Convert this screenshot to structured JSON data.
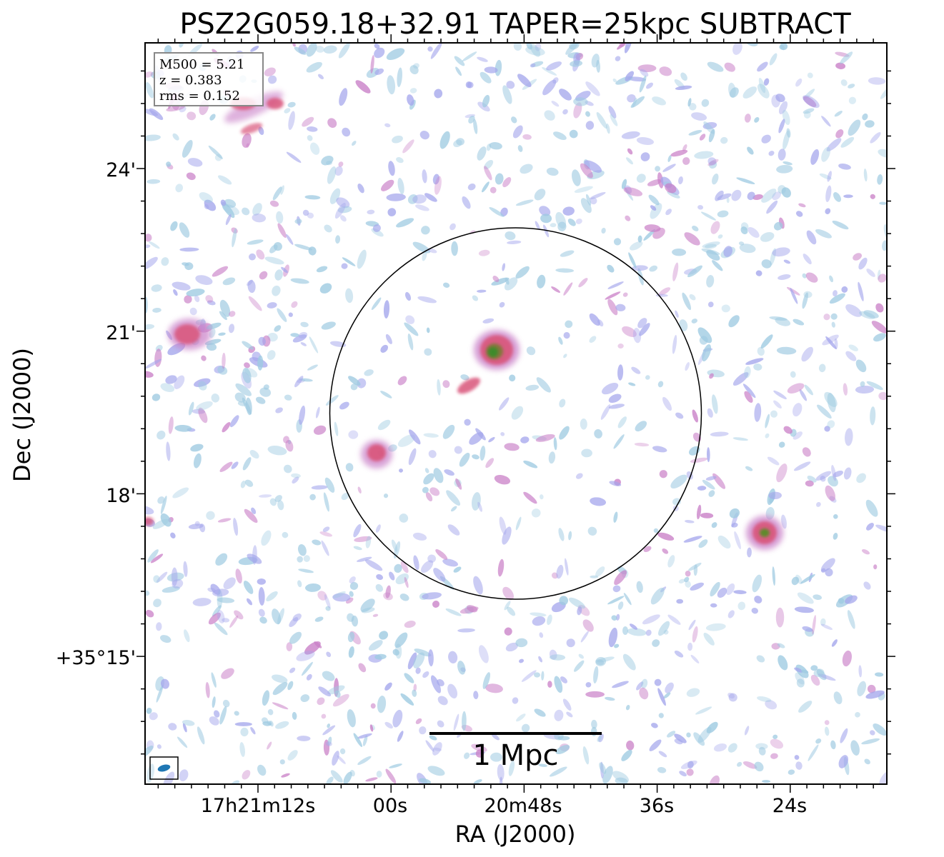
{
  "title": "PSZ2G059.18+32.91 TAPER=25kpc SUBTRACT",
  "x_label": "RA (J2000)",
  "y_label": "Dec (J2000)",
  "x_ticks": [
    "17h21m12s",
    "00s",
    "20m48s",
    "36s",
    "24s"
  ],
  "y_ticks": [
    "24'",
    "21'",
    "18'",
    "+35°15'"
  ],
  "info_box": {
    "mass": "M500 = 5.21",
    "redshift": "z = 0.383",
    "rms": "rms = 0.152"
  },
  "scale_bar_label": "1 Mpc",
  "colors": {
    "faint_emission": "#9ecae1",
    "low_emission": "#a4a6ec",
    "mid_emission": "#c97fc7",
    "high_emission": "#d9547a",
    "peak_emission": "#3d8a2a",
    "beam": "#1f77b4"
  },
  "sources": [
    {
      "name": "central-source",
      "peak": "high-with-green-core"
    },
    {
      "name": "east-source",
      "peak": "high-with-green-core"
    },
    {
      "name": "west-source",
      "peak": "high"
    },
    {
      "name": "inner-left-source",
      "peak": "high"
    },
    {
      "name": "top-left-source",
      "peak": "high"
    }
  ]
}
